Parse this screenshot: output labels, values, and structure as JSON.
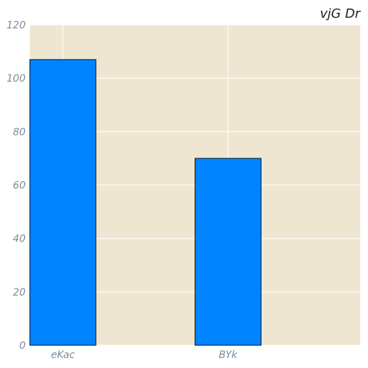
{
  "chart_data": {
    "type": "bar",
    "title": "vjG Dr",
    "categories": [
      "eKac",
      "BYk"
    ],
    "values": [
      107,
      70
    ],
    "ylim": [
      0,
      120
    ],
    "yticks": [
      0,
      20,
      40,
      60,
      80,
      100,
      120
    ],
    "xlabel": "",
    "ylabel": "",
    "grid": true,
    "colors": {
      "bar": "#0084ff",
      "bar_edge": "#111111",
      "plot_bg": "#efe6d2",
      "grid": "#ffffff"
    }
  }
}
